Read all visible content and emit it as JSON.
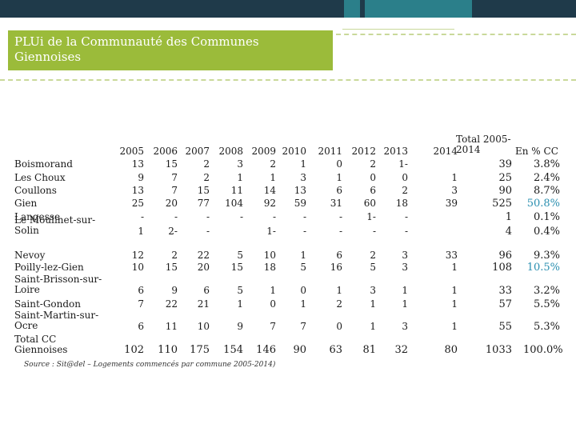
{
  "title": "PLUi de la Communauté des Communes Giennoises",
  "colors": {
    "accent": "#9bbb3a",
    "bar_dark": "#1f3a4a",
    "bar_teal": "#2b7f8a",
    "highlight": "#2a8fb0"
  },
  "headers": [
    "2005",
    "2006",
    "2007",
    "2008",
    "2009",
    "2010",
    "2011",
    "2012",
    "2013",
    "2014",
    "Total 2005-2014",
    "En % CC"
  ],
  "rows": [
    {
      "label": "Boismorand",
      "values": [
        "13",
        "15",
        "2",
        "3",
        "2",
        "1",
        "0",
        "2",
        "1-",
        "",
        "39",
        "3.8%"
      ]
    },
    {
      "label": "Les Choux",
      "values": [
        "9",
        "7",
        "2",
        "1",
        "1",
        "3",
        "1",
        "0",
        "0",
        "1",
        "25",
        "2.4%"
      ]
    },
    {
      "label": "Coullons",
      "values": [
        "13",
        "7",
        "15",
        "11",
        "14",
        "13",
        "6",
        "6",
        "2",
        "3",
        "90",
        "8.7%"
      ]
    },
    {
      "label": "Gien",
      "values": [
        "25",
        "20",
        "77",
        "104",
        "92",
        "59",
        "31",
        "60",
        "18",
        "39",
        "525",
        "50.8%"
      ]
    },
    {
      "label": "Langesse",
      "values": [
        "-",
        "-",
        "-",
        "-",
        "-",
        "-",
        "-",
        "1-",
        "-",
        "",
        "1",
        "0.1%"
      ]
    },
    {
      "label": "Le Moulinet-sur-Solin",
      "values": [
        "1",
        "2-",
        "-",
        "",
        "1-",
        "-",
        "-",
        "-",
        "-",
        "",
        "4",
        "0.4%"
      ]
    },
    {
      "label": "Nevoy",
      "values": [
        "12",
        "2",
        "22",
        "5",
        "10",
        "1",
        "6",
        "2",
        "3",
        "33",
        "96",
        "9.3%"
      ]
    },
    {
      "label": "Poilly-lez-Gien",
      "values": [
        "10",
        "15",
        "20",
        "15",
        "18",
        "5",
        "16",
        "5",
        "3",
        "1",
        "108",
        "10.5%"
      ]
    },
    {
      "label": "Saint-Brisson-sur-Loire",
      "values": [
        "6",
        "9",
        "6",
        "5",
        "1",
        "0",
        "1",
        "3",
        "1",
        "1",
        "33",
        "3.2%"
      ]
    },
    {
      "label": "Saint-Gondon",
      "values": [
        "7",
        "22",
        "21",
        "1",
        "0",
        "1",
        "2",
        "1",
        "1",
        "1",
        "57",
        "5.5%"
      ]
    },
    {
      "label": "Saint-Martin-sur-Ocre",
      "values": [
        "6",
        "11",
        "10",
        "9",
        "7",
        "7",
        "0",
        "1",
        "3",
        "1",
        "55",
        "5.3%"
      ]
    },
    {
      "label": "Total CC Giennoises",
      "values": [
        "102",
        "110",
        "175",
        "154",
        "146",
        "90",
        "63",
        "81",
        "32",
        "80",
        "1033",
        "100.0%"
      ]
    }
  ],
  "source": "Source : Sit@del – Logements commencés par commune 2005-2014)"
}
